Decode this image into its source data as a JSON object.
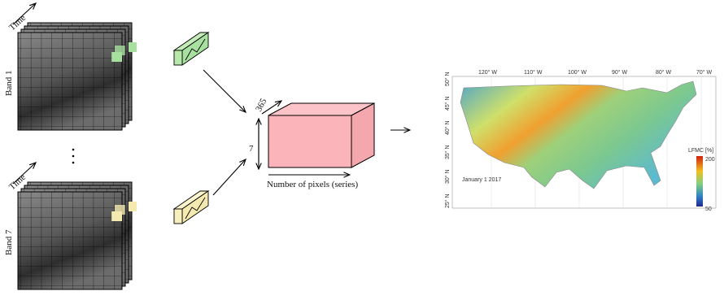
{
  "stacks": [
    {
      "time_label": "Time",
      "band_label": "Band 1"
    },
    {
      "time_label": "Time",
      "band_label": "Band 7"
    }
  ],
  "cube": {
    "depth_label": 365,
    "height_label": 7,
    "width_label": "Number of pixels (series)"
  },
  "map": {
    "x_labels": [
      "120° W",
      "110° W",
      "100° W",
      "90° W",
      "80° W",
      "70° W"
    ],
    "y_labels": [
      "50° N",
      "45° N",
      "40° N",
      "35° N",
      "30° N",
      "25° N"
    ],
    "date_label": "January 1 2017",
    "legend_title": "LFMC [%]",
    "legend_max": 200,
    "legend_min": 50
  }
}
